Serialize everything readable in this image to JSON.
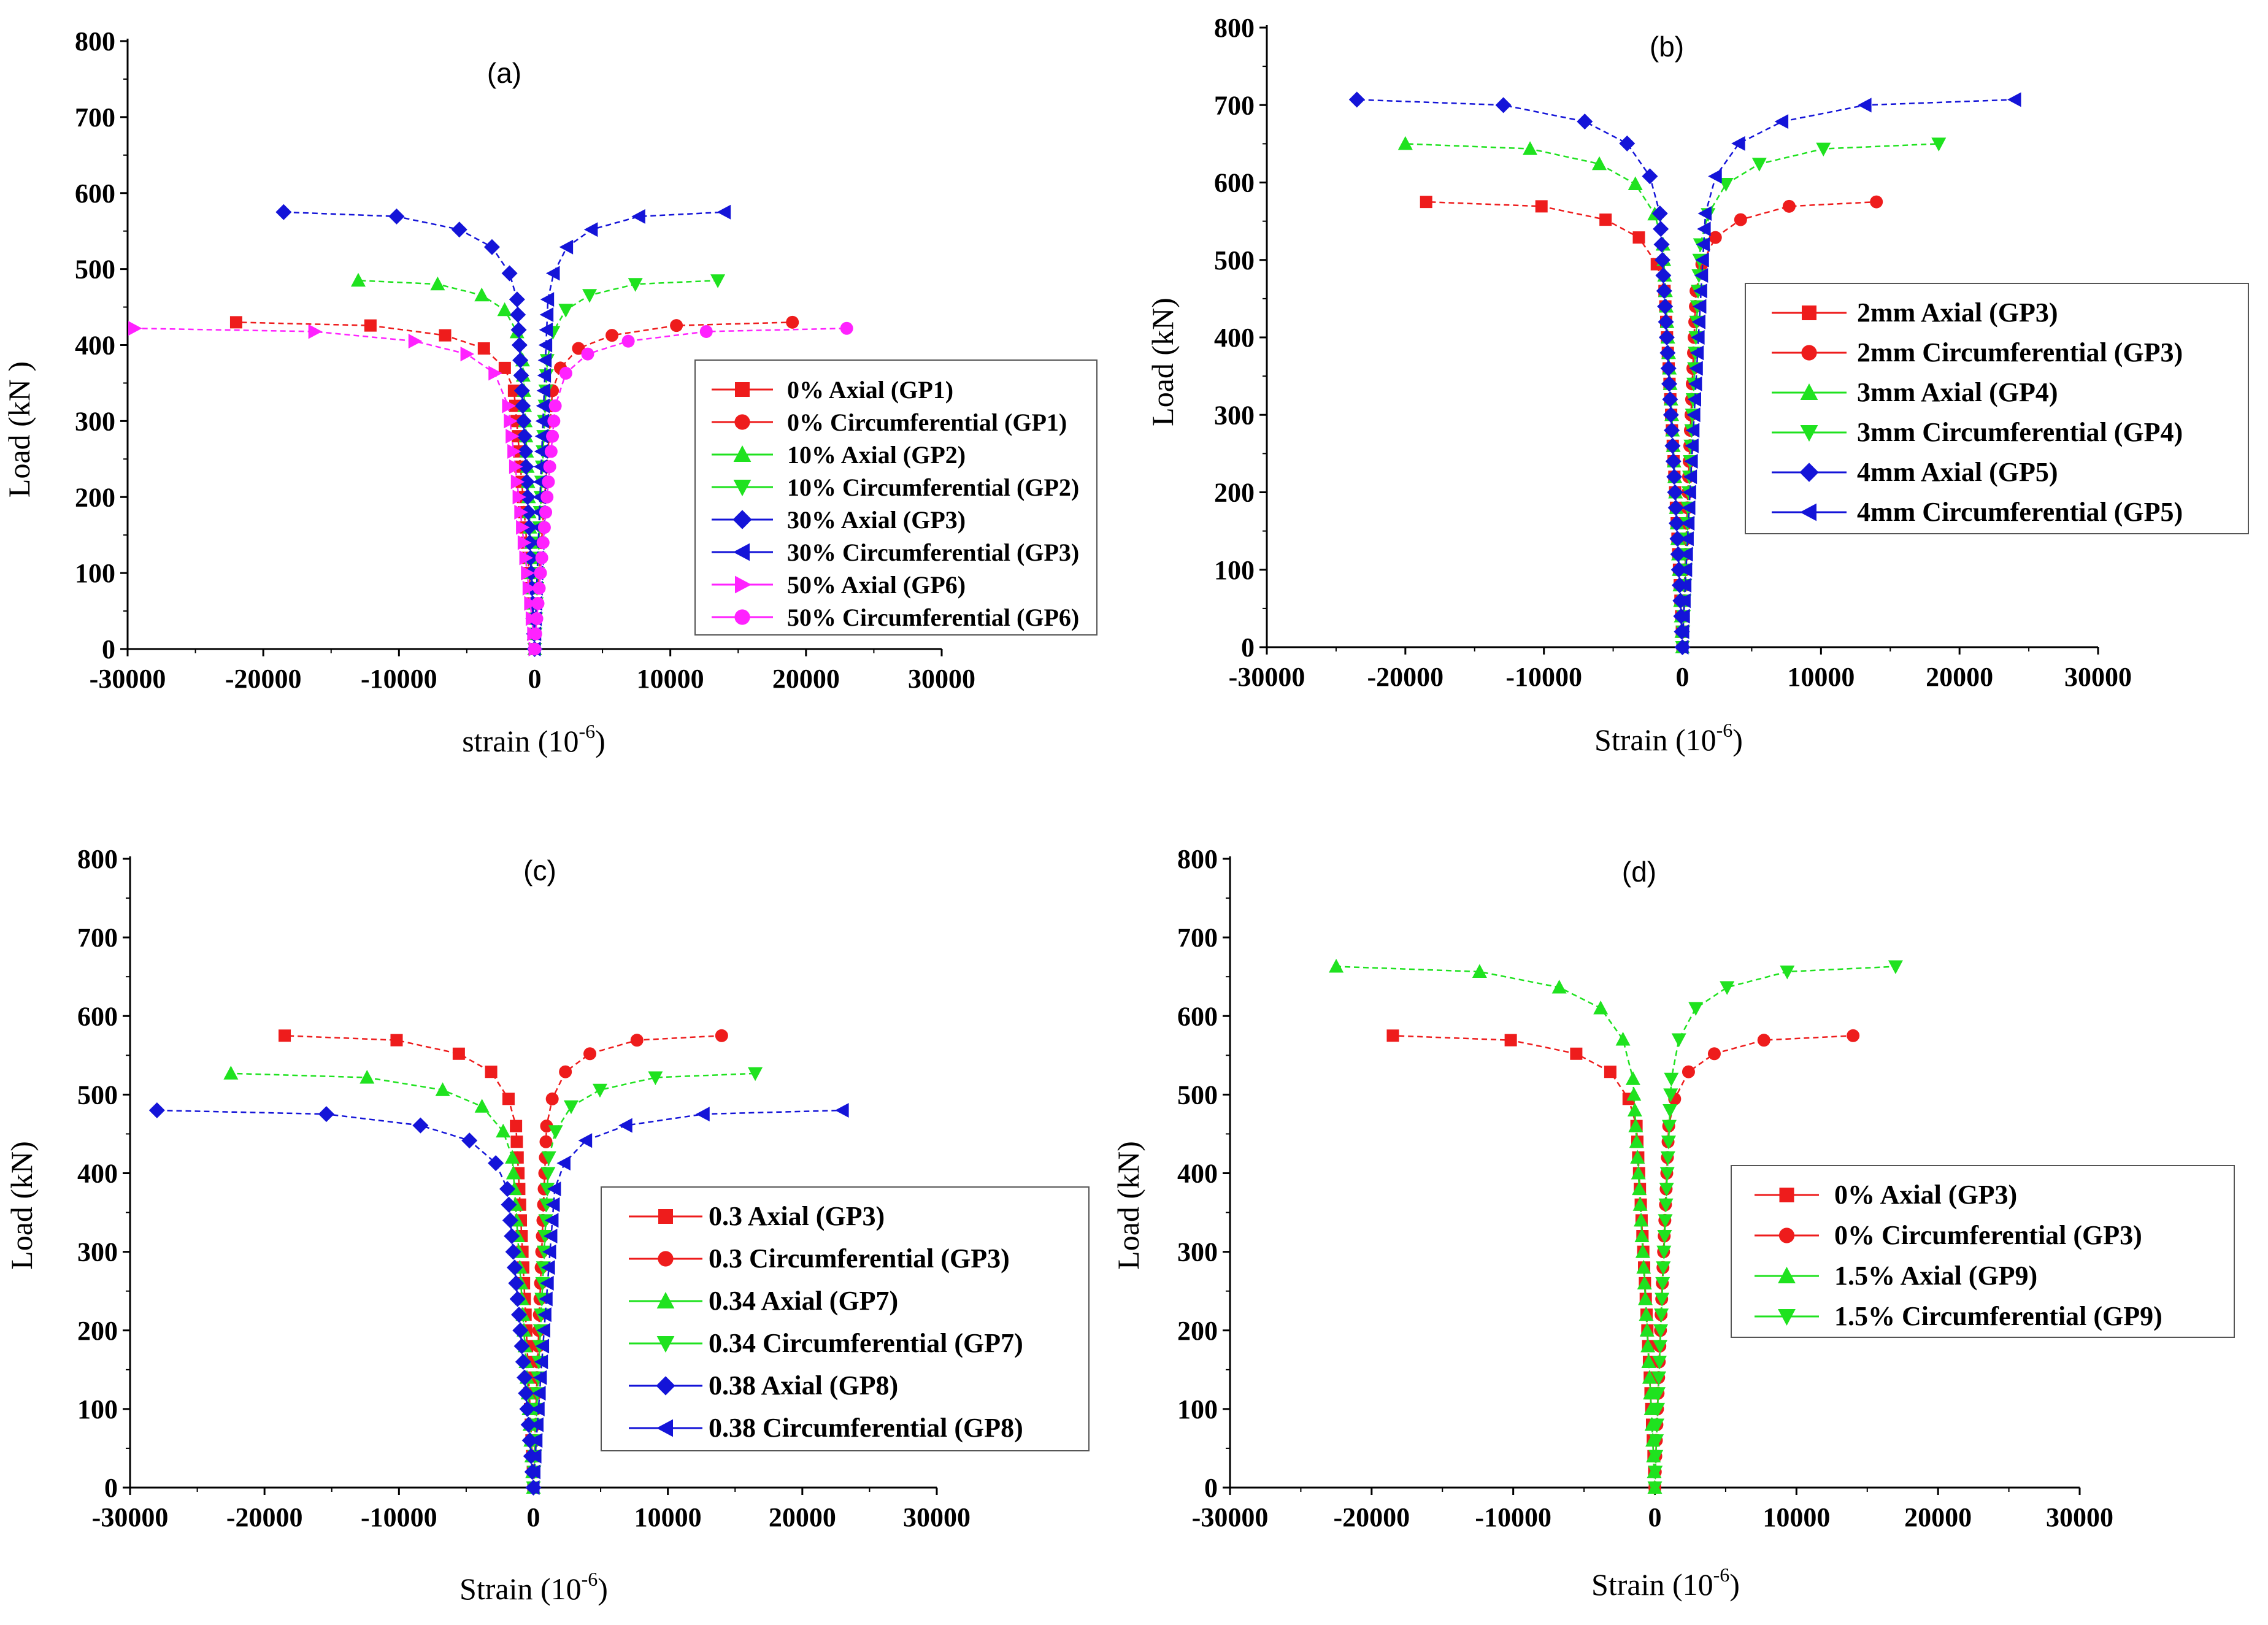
{
  "figure": {
    "colors": {
      "red": "#ee1c1c",
      "green": "#1fe21f",
      "blue": "#1414d8",
      "magenta": "#ff22ff",
      "axis": "#000000"
    }
  },
  "chart_data": [
    {
      "id": "a",
      "type": "line",
      "panel_label": "(a)",
      "xlabel": "strain (10",
      "xlabel_sup": "-6",
      "xlabel_close": ")",
      "ylabel": "Load  (kN )",
      "xlim": [
        -30000,
        30000
      ],
      "ylim": [
        0,
        800
      ],
      "xticks": [
        "-30000",
        "-20000",
        "-10000",
        "0",
        "10000",
        "20000",
        "30000"
      ],
      "yticks": [
        "0",
        "100",
        "200",
        "300",
        "400",
        "500",
        "600",
        "700",
        "800"
      ],
      "legend": "bottom-right",
      "series": [
        {
          "name": "0% Axial (GP1)",
          "color": "red",
          "marker": "square",
          "side": "left",
          "max_load": 430,
          "max_strain": 22000
        },
        {
          "name": "0% Circumferential (GP1)",
          "color": "red",
          "marker": "circle",
          "side": "right",
          "max_load": 430,
          "max_strain": 19000
        },
        {
          "name": "10% Axial (GP2)",
          "color": "green",
          "marker": "triangle-up",
          "side": "left",
          "max_load": 485,
          "max_strain": 13000
        },
        {
          "name": "10% Circumferential (GP2)",
          "color": "green",
          "marker": "triangle-down",
          "side": "right",
          "max_load": 485,
          "max_strain": 13500
        },
        {
          "name": "30% Axial (GP3)",
          "color": "blue",
          "marker": "diamond",
          "side": "left",
          "max_load": 575,
          "max_strain": 18500
        },
        {
          "name": "30% Circumferential (GP3)",
          "color": "blue",
          "marker": "triangle-left",
          "side": "right",
          "max_load": 575,
          "max_strain": 14000
        },
        {
          "name": "50% Axial (GP6)",
          "color": "magenta",
          "marker": "triangle-right",
          "side": "left",
          "max_load": 422,
          "max_strain": 29500
        },
        {
          "name": "50% Circumferential (GP6)",
          "color": "magenta",
          "marker": "circle",
          "side": "right",
          "max_load": 422,
          "max_strain": 23000
        }
      ]
    },
    {
      "id": "b",
      "type": "line",
      "panel_label": "(b)",
      "xlabel": "Strain (10",
      "xlabel_sup": "-6",
      "xlabel_close": ")",
      "ylabel": "Load (kN)",
      "xlim": [
        -30000,
        30000
      ],
      "ylim": [
        0,
        800
      ],
      "xticks": [
        "-30000",
        "-20000",
        "-10000",
        "0",
        "10000",
        "20000",
        "30000"
      ],
      "yticks": [
        "0",
        "100",
        "200",
        "300",
        "400",
        "500",
        "600",
        "700",
        "800"
      ],
      "legend": "right",
      "series": [
        {
          "name": "2mm Axial (GP3)",
          "color": "red",
          "marker": "square",
          "side": "left",
          "max_load": 575,
          "max_strain": 18500
        },
        {
          "name": "2mm Circumferential (GP3)",
          "color": "red",
          "marker": "circle",
          "side": "right",
          "max_load": 575,
          "max_strain": 14000
        },
        {
          "name": "3mm Axial (GP4)",
          "color": "green",
          "marker": "triangle-up",
          "side": "left",
          "max_load": 650,
          "max_strain": 20000
        },
        {
          "name": "3mm Circumferential (GP4)",
          "color": "green",
          "marker": "triangle-down",
          "side": "right",
          "max_load": 650,
          "max_strain": 18500
        },
        {
          "name": "4mm Axial (GP5)",
          "color": "blue",
          "marker": "diamond",
          "side": "left",
          "max_load": 707,
          "max_strain": 23500
        },
        {
          "name": "4mm Circumferential (GP5)",
          "color": "blue",
          "marker": "triangle-left",
          "side": "right",
          "max_load": 707,
          "max_strain": 24000
        }
      ]
    },
    {
      "id": "c",
      "type": "line",
      "panel_label": "(c)",
      "xlabel": "Strain (10",
      "xlabel_sup": "-6",
      "xlabel_close": ")",
      "ylabel": "Load (kN)",
      "xlim": [
        -30000,
        30000
      ],
      "ylim": [
        0,
        800
      ],
      "xticks": [
        "-30000",
        "-20000",
        "-10000",
        "0",
        "10000",
        "20000",
        "30000"
      ],
      "yticks": [
        "0",
        "100",
        "200",
        "300",
        "400",
        "500",
        "600",
        "700",
        "800"
      ],
      "legend": "bottom-right",
      "series": [
        {
          "name": "0.3 Axial (GP3)",
          "color": "red",
          "marker": "square",
          "side": "left",
          "max_load": 575,
          "max_strain": 18500
        },
        {
          "name": "0.3 Circumferential (GP3)",
          "color": "red",
          "marker": "circle",
          "side": "right",
          "max_load": 575,
          "max_strain": 14000
        },
        {
          "name": "0.34 Axial (GP7)",
          "color": "green",
          "marker": "triangle-up",
          "side": "left",
          "max_load": 527,
          "max_strain": 22500
        },
        {
          "name": "0.34 Circumferential (GP7)",
          "color": "green",
          "marker": "triangle-down",
          "side": "right",
          "max_load": 527,
          "max_strain": 16500
        },
        {
          "name": "0.38 Axial (GP8)",
          "color": "blue",
          "marker": "diamond",
          "side": "left",
          "max_load": 480,
          "max_strain": 28000
        },
        {
          "name": "0.38 Circumferential (GP8)",
          "color": "blue",
          "marker": "triangle-left",
          "side": "right",
          "max_load": 480,
          "max_strain": 23000
        }
      ]
    },
    {
      "id": "d",
      "type": "line",
      "panel_label": "(d)",
      "xlabel": "Strain (10",
      "xlabel_sup": "-6",
      "xlabel_close": ")",
      "ylabel": "Load (kN)",
      "xlim": [
        -30000,
        30000
      ],
      "ylim": [
        0,
        800
      ],
      "xticks": [
        "-30000",
        "-20000",
        "-10000",
        "0",
        "10000",
        "20000",
        "30000"
      ],
      "yticks": [
        "0",
        "100",
        "200",
        "300",
        "400",
        "500",
        "600",
        "700",
        "800"
      ],
      "legend": "right",
      "series": [
        {
          "name": "0% Axial (GP3)",
          "color": "red",
          "marker": "square",
          "side": "left",
          "max_load": 575,
          "max_strain": 18500
        },
        {
          "name": "0% Circumferential (GP3)",
          "color": "red",
          "marker": "circle",
          "side": "right",
          "max_load": 575,
          "max_strain": 14000
        },
        {
          "name": "1.5% Axial (GP9)",
          "color": "green",
          "marker": "triangle-up",
          "side": "left",
          "max_load": 663,
          "max_strain": 22500
        },
        {
          "name": "1.5% Circumferential (GP9)",
          "color": "green",
          "marker": "triangle-down",
          "side": "right",
          "max_load": 663,
          "max_strain": 17000
        }
      ]
    }
  ]
}
